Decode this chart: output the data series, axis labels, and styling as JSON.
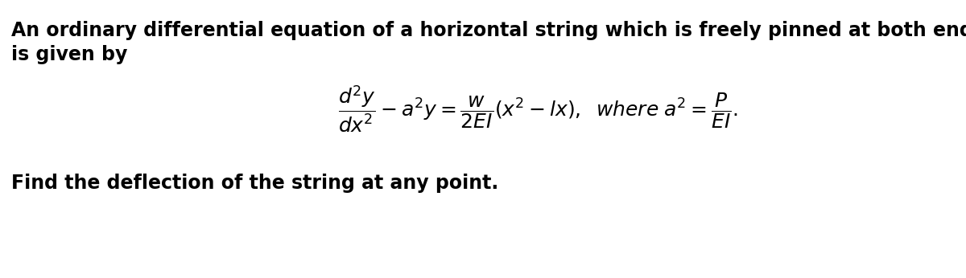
{
  "background_color": "#ffffff",
  "text_color": "#000000",
  "fig_width": 12.0,
  "fig_height": 3.46,
  "dpi": 100,
  "line1": "An ordinary differential equation of a horizontal string which is freely pinned at both ends",
  "line2": "is given by",
  "equation": "$\\dfrac{d^2y}{dx^2} - a^2y = \\dfrac{w}{2EI}(x^2 - lx),\\;\\; where\\; a^2 = \\dfrac{P}{EI}.$",
  "bottom_text": "Find the deflection of the string at any point.",
  "text_fontsize": 17,
  "eq_fontsize": 18
}
